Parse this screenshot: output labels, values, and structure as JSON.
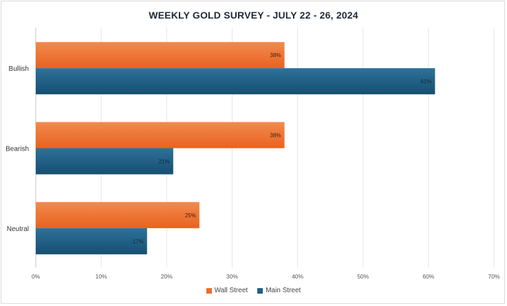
{
  "chart_data": {
    "type": "bar",
    "orientation": "horizontal",
    "title": "WEEKLY GOLD SURVEY - JULY 22 - 26, 2024",
    "categories": [
      "Bullish",
      "Bearish",
      "Neutral"
    ],
    "series": [
      {
        "name": "Wall Street",
        "values": [
          38,
          38,
          25
        ],
        "labels": [
          "38%",
          "38%",
          "25%"
        ],
        "color": "#ef6c2a"
      },
      {
        "name": "Main Street",
        "values": [
          61,
          21,
          17
        ],
        "labels": [
          "61%",
          "21%",
          "17%"
        ],
        "color": "#1f5f86"
      }
    ],
    "xlim": [
      0,
      70
    ],
    "xticks": [
      "0%",
      "10%",
      "20%",
      "30%",
      "40%",
      "50%",
      "60%",
      "70%"
    ],
    "grid": true,
    "legend": "bottom"
  }
}
